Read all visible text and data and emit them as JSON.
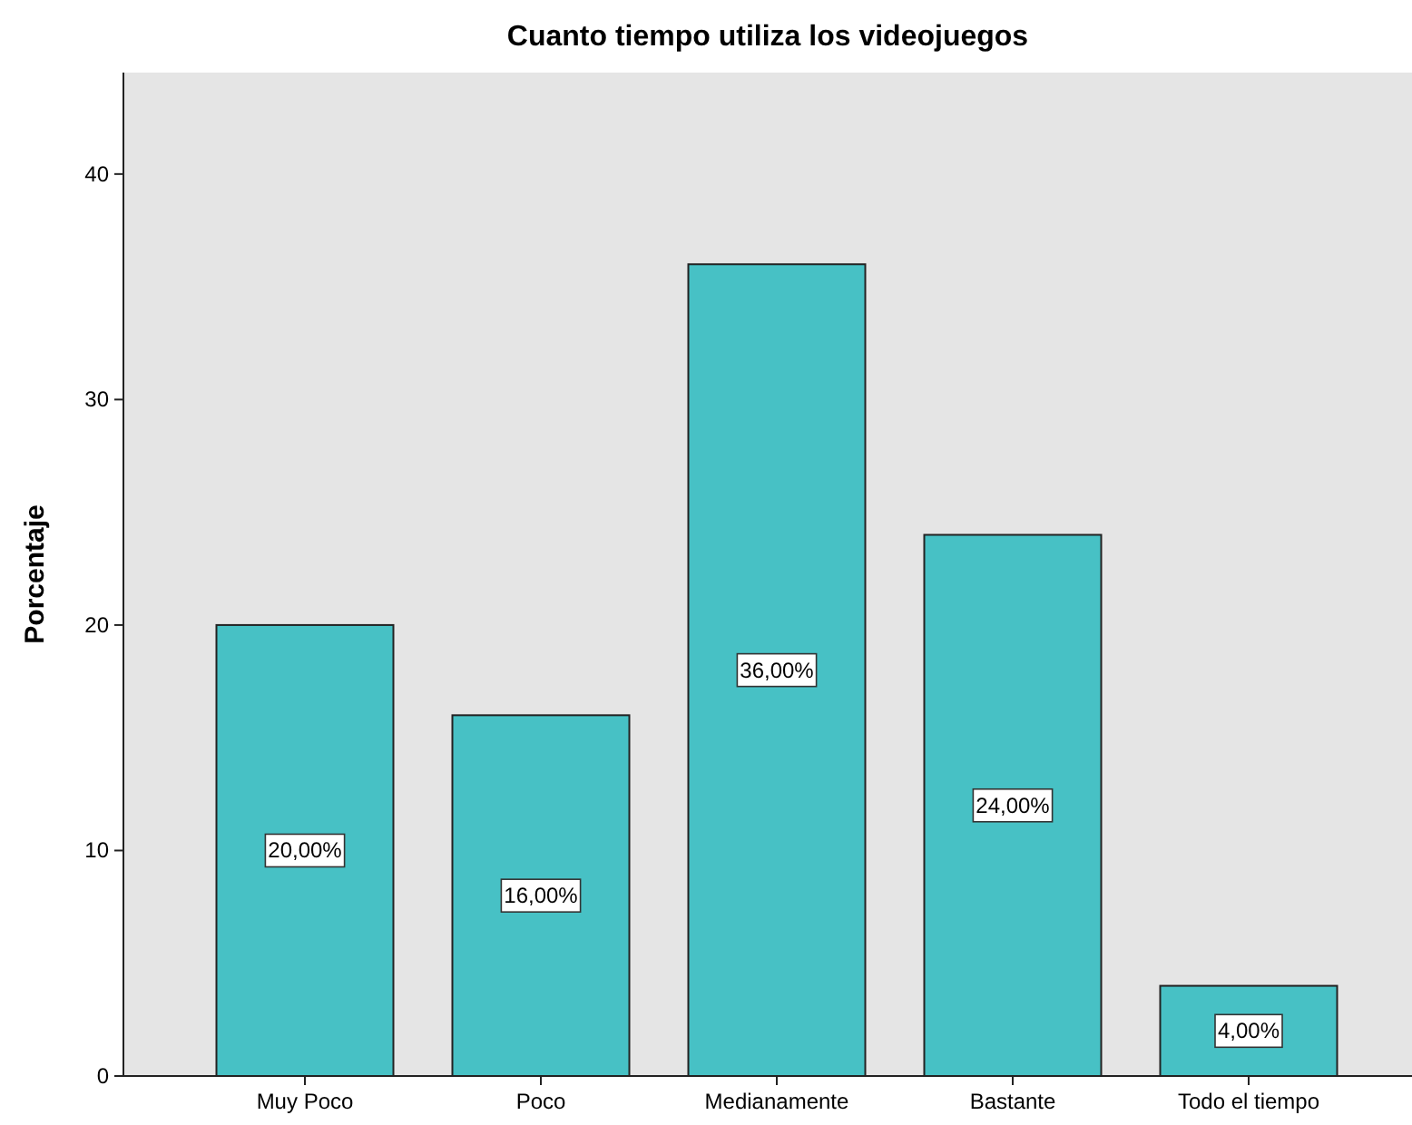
{
  "chart_data": {
    "type": "bar",
    "title": "Cuanto tiempo utiliza los videojuegos",
    "ylabel": "Porcentaje",
    "categories": [
      "Muy Poco",
      "Poco",
      "Medianamente",
      "Bastante",
      "Todo el tiempo"
    ],
    "values": [
      20,
      16,
      36,
      24,
      4
    ],
    "value_labels": [
      "20,00%",
      "16,00%",
      "36,00%",
      "24,00%",
      "4,00%"
    ],
    "color": "#47c1c5",
    "ylim": [
      0,
      44.5
    ],
    "yticks": [
      0,
      10,
      20,
      30,
      40
    ],
    "grid": false
  }
}
